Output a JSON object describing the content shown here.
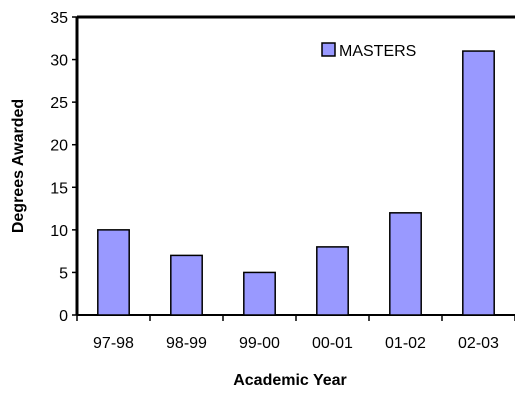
{
  "chart_data": {
    "type": "bar",
    "title": "",
    "xlabel": "Academic Year",
    "ylabel": "Degrees Awarded",
    "categories": [
      "97-98",
      "98-99",
      "99-00",
      "00-01",
      "01-02",
      "02-03"
    ],
    "series": [
      {
        "name": "MASTERS",
        "values": [
          10,
          7,
          5,
          8,
          12,
          31
        ]
      }
    ],
    "ylim": [
      0,
      35
    ],
    "yticks": [
      0,
      5,
      10,
      15,
      20,
      25,
      30,
      35
    ],
    "grid": false,
    "legend_position": "top-right",
    "colors": {
      "bar_fill": "#9999ff",
      "bar_stroke": "#000000",
      "axis": "#000000"
    }
  }
}
